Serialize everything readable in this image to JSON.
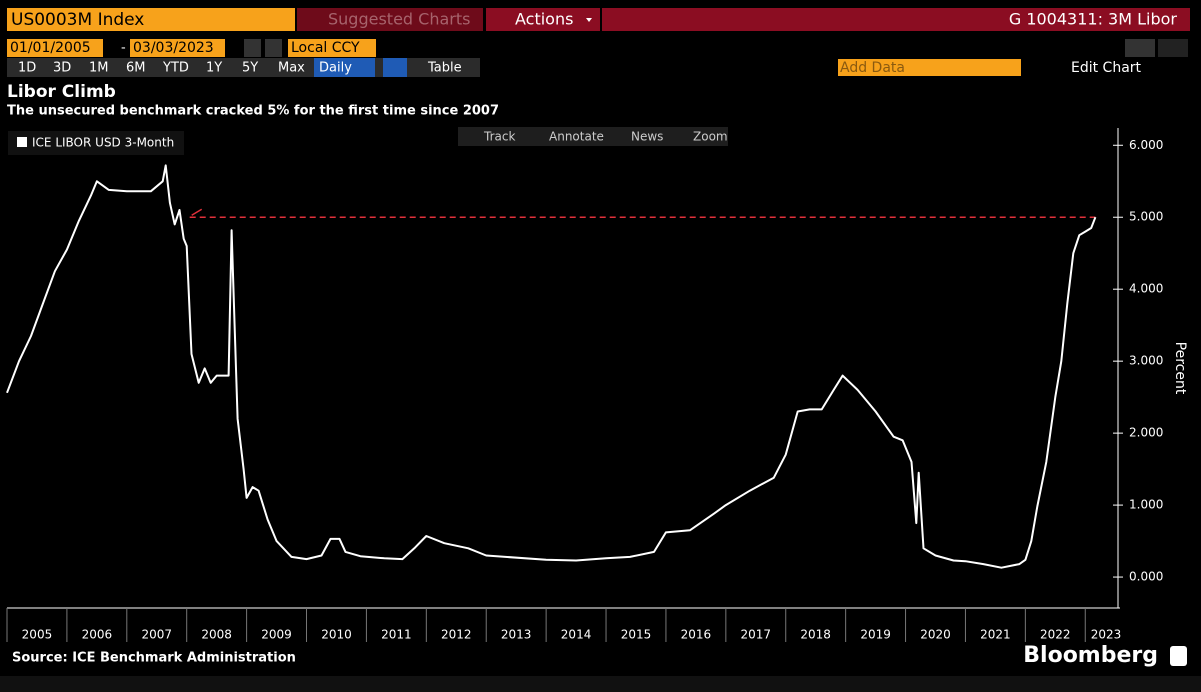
{
  "toolbar": {
    "ticker": "US0003M Index",
    "suggested": "Suggested Charts",
    "actions": "Actions",
    "security": "G 1004311: 3M Libor",
    "start_date": "01/01/2005",
    "date_separator": "-",
    "end_date": "03/03/2023",
    "currency": "Local CCY",
    "periods": [
      "1D",
      "3D",
      "1M",
      "6M",
      "YTD",
      "1Y",
      "5Y",
      "Max"
    ],
    "frequency": "Daily",
    "table": "Table",
    "add_data": "Add Data",
    "edit_chart": "Edit Chart",
    "tools": [
      "Track",
      "Annotate",
      "News",
      "Zoom"
    ]
  },
  "chart_data": {
    "type": "line",
    "title": "Libor Climb",
    "subtitle": "The unsecured benchmark cracked 5% for the first time since 2007",
    "y_label": "Percent",
    "x": [
      2005.0,
      2005.2,
      2005.4,
      2005.6,
      2005.8,
      2006.0,
      2006.2,
      2006.4,
      2006.5,
      2006.7,
      2007.0,
      2007.4,
      2007.6,
      2007.65,
      2007.72,
      2007.8,
      2007.88,
      2007.95,
      2008.0,
      2008.08,
      2008.2,
      2008.3,
      2008.4,
      2008.5,
      2008.7,
      2008.75,
      2008.8,
      2008.85,
      2008.95,
      2009.0,
      2009.1,
      2009.2,
      2009.35,
      2009.5,
      2009.75,
      2010.0,
      2010.25,
      2010.4,
      2010.55,
      2010.65,
      2010.9,
      2011.3,
      2011.6,
      2011.8,
      2012.0,
      2012.3,
      2012.7,
      2013.0,
      2014.0,
      2014.5,
      2015.0,
      2015.4,
      2015.8,
      2016.0,
      2016.4,
      2016.8,
      2017.0,
      2017.4,
      2017.8,
      2018.0,
      2018.2,
      2018.4,
      2018.6,
      2018.8,
      2018.95,
      2019.2,
      2019.5,
      2019.8,
      2019.95,
      2020.1,
      2020.18,
      2020.22,
      2020.3,
      2020.5,
      2020.8,
      2021.0,
      2021.3,
      2021.6,
      2021.9,
      2022.0,
      2022.1,
      2022.2,
      2022.35,
      2022.5,
      2022.6,
      2022.7,
      2022.8,
      2022.9,
      2023.0,
      2023.1,
      2023.17
    ],
    "series": [
      {
        "name": "ICE LIBOR USD 3-Month",
        "color": "#ffffff",
        "values": [
          2.56,
          3.0,
          3.35,
          3.8,
          4.25,
          4.55,
          4.95,
          5.3,
          5.5,
          5.38,
          5.36,
          5.36,
          5.5,
          5.72,
          5.2,
          4.9,
          5.1,
          4.7,
          4.6,
          3.1,
          2.7,
          2.9,
          2.7,
          2.8,
          2.8,
          4.82,
          3.5,
          2.2,
          1.5,
          1.1,
          1.25,
          1.2,
          0.8,
          0.5,
          0.28,
          0.25,
          0.3,
          0.53,
          0.53,
          0.35,
          0.29,
          0.26,
          0.25,
          0.4,
          0.57,
          0.47,
          0.4,
          0.3,
          0.24,
          0.23,
          0.26,
          0.28,
          0.35,
          0.62,
          0.65,
          0.88,
          1.0,
          1.2,
          1.38,
          1.7,
          2.3,
          2.33,
          2.33,
          2.6,
          2.8,
          2.6,
          2.3,
          1.95,
          1.9,
          1.6,
          0.75,
          1.45,
          0.4,
          0.3,
          0.23,
          0.22,
          0.18,
          0.13,
          0.18,
          0.24,
          0.5,
          0.98,
          1.6,
          2.5,
          3.0,
          3.8,
          4.5,
          4.75,
          4.8,
          4.85,
          5.0
        ]
      }
    ],
    "xlim": [
      2005,
      2023.58
    ],
    "xticks": [
      2005,
      2006,
      2007,
      2008,
      2009,
      2010,
      2011,
      2012,
      2013,
      2014,
      2015,
      2016,
      2017,
      2018,
      2019,
      2020,
      2021,
      2022,
      2023
    ],
    "ylim": [
      -0.43,
      6.24
    ],
    "yticks": [
      {
        "value": 0,
        "label": "0.000"
      },
      {
        "value": 1,
        "label": "1.000"
      },
      {
        "value": 2,
        "label": "2.000"
      },
      {
        "value": 3,
        "label": "3.000"
      },
      {
        "value": 4,
        "label": "4.000"
      },
      {
        "value": 5,
        "label": "5.000"
      },
      {
        "value": 6,
        "label": "6.000"
      }
    ],
    "reference_line": {
      "value": 5,
      "from": 2008.05,
      "to": 2023.17,
      "color": "#e0303a"
    },
    "source": "Source: ICE Benchmark Administration",
    "brand": "Bloomberg"
  }
}
